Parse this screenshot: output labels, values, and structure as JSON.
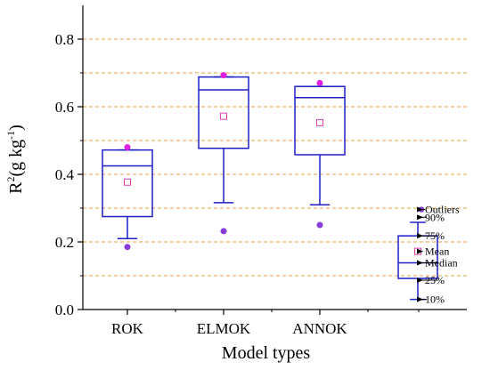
{
  "chart_data": {
    "type": "box",
    "xlabel": "Model types",
    "ylabel": {
      "base": "R",
      "sup1": "2",
      "mid": "(g kg",
      "sup2": "-1",
      "end": ")"
    },
    "ylim": [
      0,
      0.9
    ],
    "y_ticks": [
      0.0,
      0.2,
      0.4,
      0.6,
      0.8
    ],
    "y_tick_labels": [
      "0.0",
      "0.2",
      "0.4",
      "0.6",
      "0.8"
    ],
    "gridlines": [
      0.1,
      0.2,
      0.3,
      0.4,
      0.5,
      0.6,
      0.7,
      0.8
    ],
    "categories": [
      "ROK",
      "ELMOK",
      "ANNOK"
    ],
    "boxes": [
      {
        "name": "ROK",
        "p10": 0.21,
        "p25": 0.275,
        "median": 0.425,
        "p75": 0.472,
        "p90": 0.472,
        "mean": 0.377,
        "outliers_high": [
          0.48
        ],
        "outliers_low": [
          0.185
        ]
      },
      {
        "name": "ELMOK",
        "p10": 0.316,
        "p25": 0.477,
        "median": 0.65,
        "p75": 0.688,
        "p90": 0.688,
        "mean": 0.572,
        "outliers_high": [
          0.693
        ],
        "outliers_low": [
          0.232
        ]
      },
      {
        "name": "ANNOK",
        "p10": 0.31,
        "p25": 0.458,
        "median": 0.627,
        "p75": 0.66,
        "p90": 0.66,
        "mean": 0.553,
        "outliers_high": [
          0.67
        ],
        "outliers_low": [
          0.25
        ]
      }
    ],
    "legend_box": {
      "p10": 0.03,
      "p25": 0.092,
      "median": 0.138,
      "p75": 0.218,
      "p90": 0.258,
      "mean": 0.172,
      "outliers": [
        0.296
      ]
    },
    "legend_labels": {
      "outliers": "Outliers",
      "p90": "90%",
      "p75": "75%",
      "mean": "Mean",
      "median": "Median",
      "p25": "25%",
      "p10": "10%"
    },
    "colors": {
      "box": "#1f1fc8",
      "mean": "#e040b0",
      "outlier_high": "#e020e0",
      "outlier_low": "#8a3cd8",
      "grid": "#e8a040",
      "axis": "#000000"
    }
  }
}
